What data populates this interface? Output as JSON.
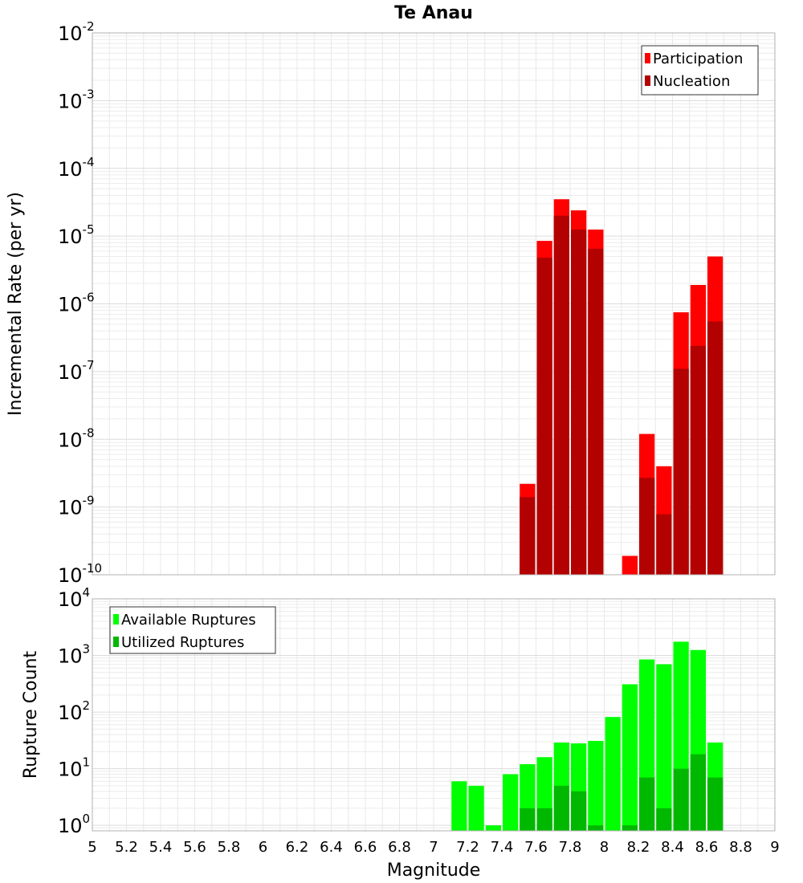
{
  "chart_data": [
    {
      "type": "bar",
      "title": "Te Anau",
      "xlabel": "",
      "ylabel": "Incremental Rate (per yr)",
      "xlim": [
        5,
        9
      ],
      "ylim": [
        1e-10,
        0.01
      ],
      "yscale": "log",
      "ytick_exponents": [
        -10,
        -9,
        -8,
        -7,
        -6,
        -5,
        -4,
        -3,
        -2
      ],
      "grid": true,
      "legend_position": "top-right",
      "bar_width": 0.1,
      "series": [
        {
          "name": "Participation",
          "color": "#ff0000",
          "x": [
            7.55,
            7.65,
            7.75,
            7.85,
            7.95,
            8.15,
            8.25,
            8.35,
            8.45,
            8.55,
            8.65
          ],
          "values": [
            2.2e-09,
            8.5e-06,
            3.5e-05,
            2.4e-05,
            1.25e-05,
            1.9e-10,
            1.2e-08,
            4e-09,
            7.5e-07,
            1.9e-06,
            5e-06
          ]
        },
        {
          "name": "Nucleation",
          "color": "#b30000",
          "x": [
            7.55,
            7.65,
            7.75,
            7.85,
            7.95,
            8.25,
            8.35,
            8.45,
            8.55,
            8.65
          ],
          "values": [
            1.4e-09,
            4.8e-06,
            2e-05,
            1.25e-05,
            6.5e-06,
            2.7e-09,
            7.8e-10,
            1.1e-07,
            2.4e-07,
            5.5e-07
          ]
        }
      ]
    },
    {
      "type": "bar",
      "title": "",
      "xlabel": "Magnitude",
      "ylabel": "Rupture Count",
      "xlim": [
        5,
        9
      ],
      "ylim": [
        0.8,
        10000
      ],
      "yscale": "log",
      "ytick_exponents": [
        0,
        1,
        2,
        3,
        4
      ],
      "xticks": [
        "5",
        "5.2",
        "5.4",
        "5.6",
        "5.8",
        "6",
        "6.2",
        "6.4",
        "6.6",
        "6.8",
        "7",
        "7.2",
        "7.4",
        "7.6",
        "7.8",
        "8",
        "8.2",
        "8.4",
        "8.6",
        "8.8",
        "9"
      ],
      "grid": true,
      "legend_position": "top-left",
      "bar_width": 0.1,
      "series": [
        {
          "name": "Available Ruptures",
          "color": "#00ff00",
          "x": [
            7.15,
            7.25,
            7.35,
            7.45,
            7.55,
            7.65,
            7.75,
            7.85,
            7.95,
            8.05,
            8.15,
            8.25,
            8.35,
            8.45,
            8.55,
            8.65
          ],
          "values": [
            6,
            5,
            1,
            8,
            12,
            16,
            29,
            28,
            31,
            82,
            310,
            850,
            700,
            1750,
            1250,
            29
          ]
        },
        {
          "name": "Utilized Ruptures",
          "color": "#00b800",
          "x": [
            7.55,
            7.65,
            7.75,
            7.85,
            7.95,
            8.15,
            8.25,
            8.35,
            8.45,
            8.55,
            8.65
          ],
          "values": [
            2,
            2,
            5,
            4,
            1,
            1,
            7,
            2,
            10,
            18,
            7
          ]
        }
      ]
    }
  ]
}
